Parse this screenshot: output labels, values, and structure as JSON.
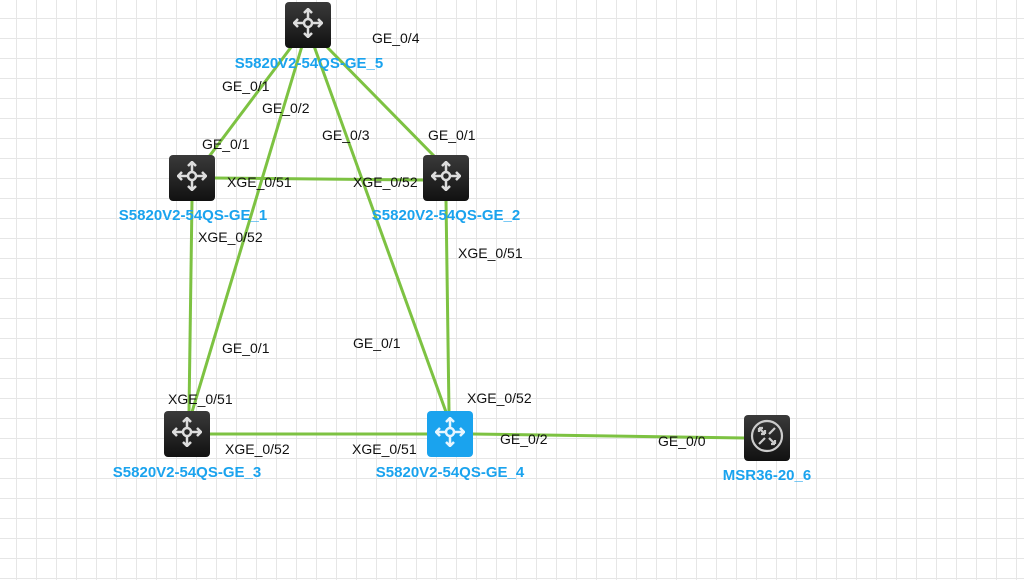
{
  "colors": {
    "link": "#7dc242",
    "label": "#1aa3ee",
    "selected_node": "#1aa3ee",
    "node": "#1a1a1a"
  },
  "nodes": [
    {
      "id": "n5",
      "name": "S5820V2-54QS-GE_5",
      "icon": "switch-icon"
    },
    {
      "id": "n1",
      "name": "S5820V2-54QS-GE_1",
      "icon": "switch-icon"
    },
    {
      "id": "n2",
      "name": "S5820V2-54QS-GE_2",
      "icon": "switch-icon"
    },
    {
      "id": "n3",
      "name": "S5820V2-54QS-GE_3",
      "icon": "switch-icon"
    },
    {
      "id": "n4",
      "name": "S5820V2-54QS-GE_4",
      "icon": "switch-icon",
      "selected": true
    },
    {
      "id": "n6",
      "name": "MSR36-20_6",
      "icon": "router-icon"
    }
  ],
  "links": [
    {
      "from": "n5",
      "to": "n1",
      "from_port": "GE_0/1",
      "to_port": "GE_0/1"
    },
    {
      "from": "n5",
      "to": "n3",
      "from_port": "GE_0/2",
      "to_port": "GE_0/1"
    },
    {
      "from": "n5",
      "to": "n4",
      "from_port": "GE_0/3",
      "to_port": "GE_0/1"
    },
    {
      "from": "n5",
      "to": "n2",
      "from_port": "GE_0/4",
      "to_port": "GE_0/1"
    },
    {
      "from": "n1",
      "to": "n2",
      "from_port": "XGE_0/51",
      "to_port": "XGE_0/52"
    },
    {
      "from": "n1",
      "to": "n3",
      "from_port": "XGE_0/52",
      "to_port": "XGE_0/51"
    },
    {
      "from": "n2",
      "to": "n4",
      "from_port": "XGE_0/51",
      "to_port": "XGE_0/52"
    },
    {
      "from": "n3",
      "to": "n4",
      "from_port": "XGE_0/52",
      "to_port": "XGE_0/51"
    },
    {
      "from": "n4",
      "to": "n6",
      "from_port": "GE_0/2",
      "to_port": "GE_0/0"
    }
  ]
}
